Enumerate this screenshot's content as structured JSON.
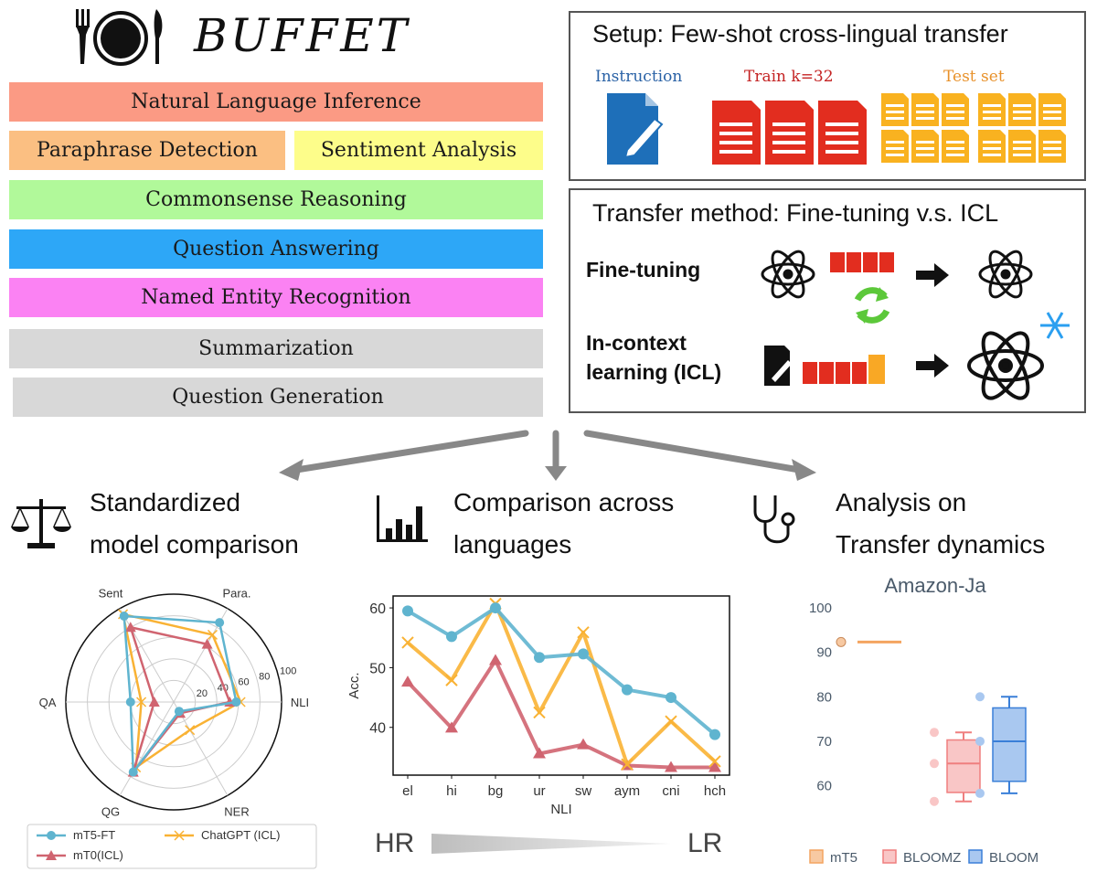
{
  "title": "BUFFET",
  "tasks": [
    {
      "label": "Natural Language Inference",
      "color": "#fb9a84"
    },
    {
      "label": "Paraphrase Detection",
      "color": "#fbbf82"
    },
    {
      "label": "Sentiment Analysis",
      "color": "#fdfd8a"
    },
    {
      "label": "Commonsense Reasoning",
      "color": "#b1f99a"
    },
    {
      "label": "Question Answering",
      "color": "#2da7f7"
    },
    {
      "label": "Named Entity Recognition",
      "color": "#fb82f3"
    },
    {
      "label": "Summarization",
      "color": "#d8d8d8"
    },
    {
      "label": "Question Generation",
      "color": "#d8d8d8"
    }
  ],
  "setup": {
    "title": "Setup: Few-shot cross-lingual transfer",
    "instruction_label": "Instruction",
    "train_label": "Train k=32",
    "test_label": "Test set"
  },
  "transfer": {
    "title": "Transfer method: Fine-tuning v.s. ICL",
    "finetune_label": "Fine-tuning",
    "icl_label_line1": "In-context",
    "icl_label_line2": "learning (ICL)"
  },
  "sections": {
    "s1_line1": "Standardized",
    "s1_line2": "model comparison",
    "s2_line1": "Comparison across",
    "s2_line2": "languages",
    "s3_line1": "Analysis on",
    "s3_line2": "Transfer dynamics"
  },
  "colors": {
    "blue": "#5fb4cf",
    "red": "#d06470",
    "orange": "#f9b234"
  },
  "chart_data": [
    {
      "type": "radar",
      "axes": [
        "Sent",
        "Para.",
        "NLI",
        "NER",
        "QG",
        "QA"
      ],
      "radial_ticks": [
        20,
        40,
        60,
        80,
        100
      ],
      "rlim": [
        0,
        100
      ],
      "series": [
        {
          "name": "mT5-FT",
          "values": [
            92,
            85,
            58,
            10,
            75,
            40
          ]
        },
        {
          "name": "mT0(ICL)",
          "values": [
            80,
            62,
            52,
            12,
            75,
            18
          ]
        },
        {
          "name": "ChatGPT (ICL)",
          "values": [
            94,
            72,
            62,
            30,
            70,
            30
          ]
        }
      ],
      "legend": [
        "mT5-FT",
        "ChatGPT (ICL)",
        "mT0(ICL)"
      ]
    },
    {
      "type": "line",
      "categories": [
        "el",
        "hi",
        "bg",
        "ur",
        "sw",
        "aym",
        "cni",
        "hch"
      ],
      "xlabel": "NLI",
      "ylabel": "Acc.",
      "ylim": [
        32,
        62
      ],
      "yticks": [
        40,
        50,
        60
      ],
      "series": [
        {
          "name": "mT5-FT",
          "values": [
            59.5,
            55.2,
            60.0,
            51.7,
            52.3,
            46.3,
            45.0,
            38.8
          ]
        },
        {
          "name": "ChatGPT (ICL)",
          "values": [
            54.2,
            47.9,
            60.7,
            42.5,
            55.9,
            33.8,
            41.0,
            34.3
          ]
        },
        {
          "name": "mT0(ICL)",
          "values": [
            47.6,
            39.9,
            51.2,
            35.6,
            37.1,
            33.6,
            33.3,
            33.3
          ]
        }
      ],
      "annotation_left": "HR",
      "annotation_right": "LR"
    },
    {
      "type": "box",
      "title": "Amazon-Ja",
      "ylim": [
        55,
        101
      ],
      "yticks": [
        60,
        70,
        80,
        90,
        100
      ],
      "series": [
        {
          "name": "mT5",
          "median": 92.3,
          "q1": 92.3,
          "q3": 92.3,
          "min": 92.3,
          "max": 92.3,
          "points": [
            92.3
          ]
        },
        {
          "name": "BLOOMZ",
          "median": 65,
          "q1": 58.5,
          "q3": 70.3,
          "min": 56.5,
          "max": 72,
          "points": [
            72,
            65,
            56.5
          ]
        },
        {
          "name": "BLOOM",
          "median": 70,
          "q1": 61,
          "q3": 77.5,
          "min": 58.3,
          "max": 80,
          "points": [
            80,
            70,
            58.3
          ]
        }
      ]
    }
  ]
}
